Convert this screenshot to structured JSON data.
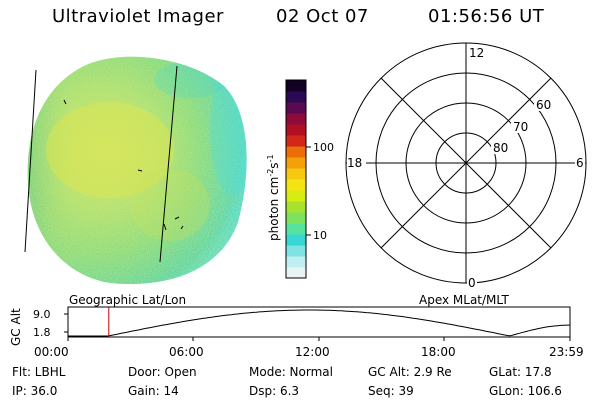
{
  "header": {
    "title": "Ultraviolet Imager",
    "date": "02 Oct 07",
    "time": "01:56:56 UT"
  },
  "colorbar": {
    "unit_base": "photon cm",
    "unit_exp1": "-2",
    "unit_mid": "s",
    "unit_exp2": "-1",
    "tick_100": "100",
    "tick_10": "10",
    "colors": [
      "#e8f4f4",
      "#bfeff0",
      "#7fe3e3",
      "#39d6d6",
      "#56e39d",
      "#7fe25d",
      "#a6e22e",
      "#d6ec12",
      "#f4e413",
      "#f6c80f",
      "#f2a10a",
      "#ec6d0a",
      "#d2281a",
      "#b10f24",
      "#8d0c3b",
      "#5a0a50",
      "#2a0a55",
      "#120025"
    ]
  },
  "polar_plot": {
    "lat_labels": [
      "60",
      "70",
      "80"
    ],
    "mlt_labels": {
      "top": "12",
      "left": "18",
      "right": "6",
      "bottom": "0"
    }
  },
  "panels": {
    "left_caption": "Geographic Lat/Lon",
    "right_caption": "Apex MLat/MLT"
  },
  "timeline": {
    "ylabel": "GC Alt",
    "y_ticks": [
      "9.0",
      "1.8"
    ],
    "x_ticks": [
      "00:00",
      "06:00",
      "12:00",
      "18:00",
      "23:59"
    ],
    "marker_time": "01:56:56"
  },
  "info": {
    "row1": {
      "flt": "Flt: LBHL",
      "door": "Door: Open",
      "mode": "Mode: Normal",
      "gcalt": "GC Alt: 2.9 Re",
      "glat": "GLat:  17.8"
    },
    "row2": {
      "ip": "IP: 36.0",
      "gain": "Gain: 14",
      "dsp": "Dsp:     6.3",
      "seq": "Seq: 39",
      "glon": "GLon: 106.6"
    }
  },
  "colors": {
    "marker": "#c00000",
    "line": "#000000"
  }
}
